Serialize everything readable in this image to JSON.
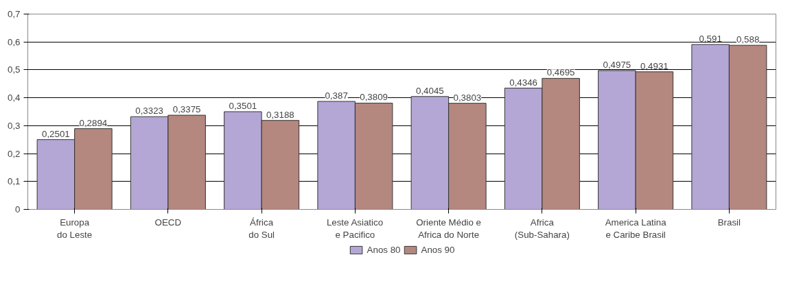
{
  "chart_data": {
    "type": "bar",
    "categories": [
      "Europa\ndo Leste",
      "OECD",
      "África\ndo Sul",
      "Leste Asiatico\ne Pacifico",
      "Oriente Médio e\nAfrica do Norte",
      "Africa\n(Sub-Sahara)",
      "America Latina\ne Caribe Brasil",
      "Brasil"
    ],
    "series": [
      {
        "name": "Anos 80",
        "color": "#b4a7d6",
        "values": [
          0.2501,
          0.3323,
          0.3501,
          0.387,
          0.4045,
          0.4346,
          0.4975,
          0.591
        ],
        "value_labels": [
          "0,2501",
          "0,3323",
          "0,3501",
          "0,387",
          "0,4045",
          "0,4346",
          "0,4975",
          "0,591"
        ]
      },
      {
        "name": "Anos 90",
        "color": "#b4877f",
        "values": [
          0.2894,
          0.3375,
          0.3188,
          0.3809,
          0.3803,
          0.4695,
          0.4931,
          0.588
        ],
        "value_labels": [
          "0,2894",
          "0,3375",
          "0,3188",
          "0,3809",
          "0,3803",
          "0,4695",
          "0,4931",
          "0,588"
        ]
      }
    ],
    "ylim": [
      0,
      0.7
    ],
    "yticks": [
      0,
      {
        "value": 0.1,
        "label": "0,1"
      },
      {
        "value": 0.2,
        "label": "0,2"
      },
      {
        "value": 0.3,
        "label": "0,3"
      },
      {
        "value": 0.4,
        "label": "0,4"
      },
      {
        "value": 0.5,
        "label": "0,5"
      },
      {
        "value": 0.6,
        "label": "0,6"
      },
      {
        "value": 0.7,
        "label": "0,7"
      }
    ],
    "grid": "y",
    "legend": "bottom"
  }
}
